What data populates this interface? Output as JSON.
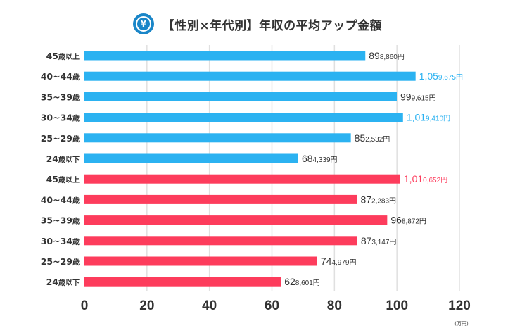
{
  "title": "【性別×年代別】年収の平均アップ金額",
  "icon": "yen-icon",
  "icon_glyph": "¥",
  "colors": {
    "male": "#2bb2f1",
    "female": "#fd3c5c",
    "highlight_male": "#2bb2f1",
    "highlight_female": "#fd3c5c",
    "grid": "#e0e0e0",
    "text": "#333333"
  },
  "chart_data": {
    "type": "bar",
    "orientation": "horizontal",
    "xlim": [
      0,
      120
    ],
    "xticks": [
      "0",
      "20",
      "40",
      "60",
      "80",
      "100",
      "120"
    ],
    "x_unit": "(万円)",
    "grid": true,
    "series": [
      {
        "group": "male",
        "color": "#2bb2f1",
        "categories": [
          "45歳以上",
          "40~44歳",
          "35~39歳",
          "30~34歳",
          "25~29歳",
          "24歳以下"
        ],
        "values": [
          898860,
          1059675,
          999615,
          1019410,
          852532,
          684339
        ],
        "labels": [
          {
            "big": "89",
            "small": "8,860円",
            "highlight": false
          },
          {
            "big": "1,05",
            "small": "9,675円",
            "highlight": true
          },
          {
            "big": "99",
            "small": "9,615円",
            "highlight": false
          },
          {
            "big": "1,01",
            "small": "9,410円",
            "highlight": true
          },
          {
            "big": "85",
            "small": "2,532円",
            "highlight": false
          },
          {
            "big": "68",
            "small": "4,339円",
            "highlight": false
          }
        ]
      },
      {
        "group": "female",
        "color": "#fd3c5c",
        "categories": [
          "45歳以上",
          "40~44歳",
          "35~39歳",
          "30~34歳",
          "25~29歳",
          "24歳以下"
        ],
        "values": [
          1010652,
          872283,
          968872,
          873147,
          744979,
          628601
        ],
        "labels": [
          {
            "big": "1,01",
            "small": "0,652円",
            "highlight": true
          },
          {
            "big": "87",
            "small": "2,283円",
            "highlight": false
          },
          {
            "big": "96",
            "small": "8,872円",
            "highlight": false
          },
          {
            "big": "87",
            "small": "3,147円",
            "highlight": false
          },
          {
            "big": "74",
            "small": "4,979円",
            "highlight": false
          },
          {
            "big": "62",
            "small": "8,601円",
            "highlight": false
          }
        ]
      }
    ]
  }
}
